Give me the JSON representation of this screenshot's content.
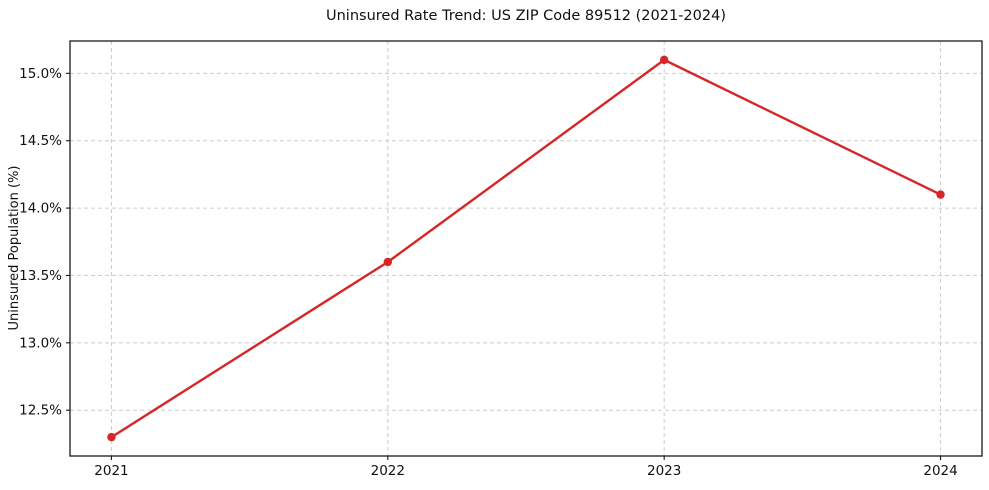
{
  "chart_data": {
    "type": "line",
    "title": "Uninsured Rate Trend: US ZIP Code 89512 (2021-2024)",
    "xlabel": "",
    "ylabel": "Uninsured Population (%)",
    "x": [
      2021,
      2022,
      2023,
      2024
    ],
    "x_tick_labels": [
      "2021",
      "2022",
      "2023",
      "2024"
    ],
    "series": [
      {
        "name": "Uninsured rate",
        "values": [
          12.3,
          13.6,
          15.1,
          14.1
        ]
      }
    ],
    "y_ticks": [
      12.5,
      13.0,
      13.5,
      14.0,
      14.5,
      15.0
    ],
    "y_tick_labels": [
      "12.5%",
      "13.0%",
      "13.5%",
      "14.0%",
      "14.5%",
      "15.0%"
    ],
    "xlim": [
      2020.85,
      2024.15
    ],
    "ylim": [
      12.16,
      15.24
    ],
    "grid": true,
    "legend_position": "none",
    "line_color": "#d62728",
    "marker": "circle",
    "background_color": "#ffffff",
    "grid_color": "#cccccc",
    "spine_color": "#1a1a1a"
  }
}
